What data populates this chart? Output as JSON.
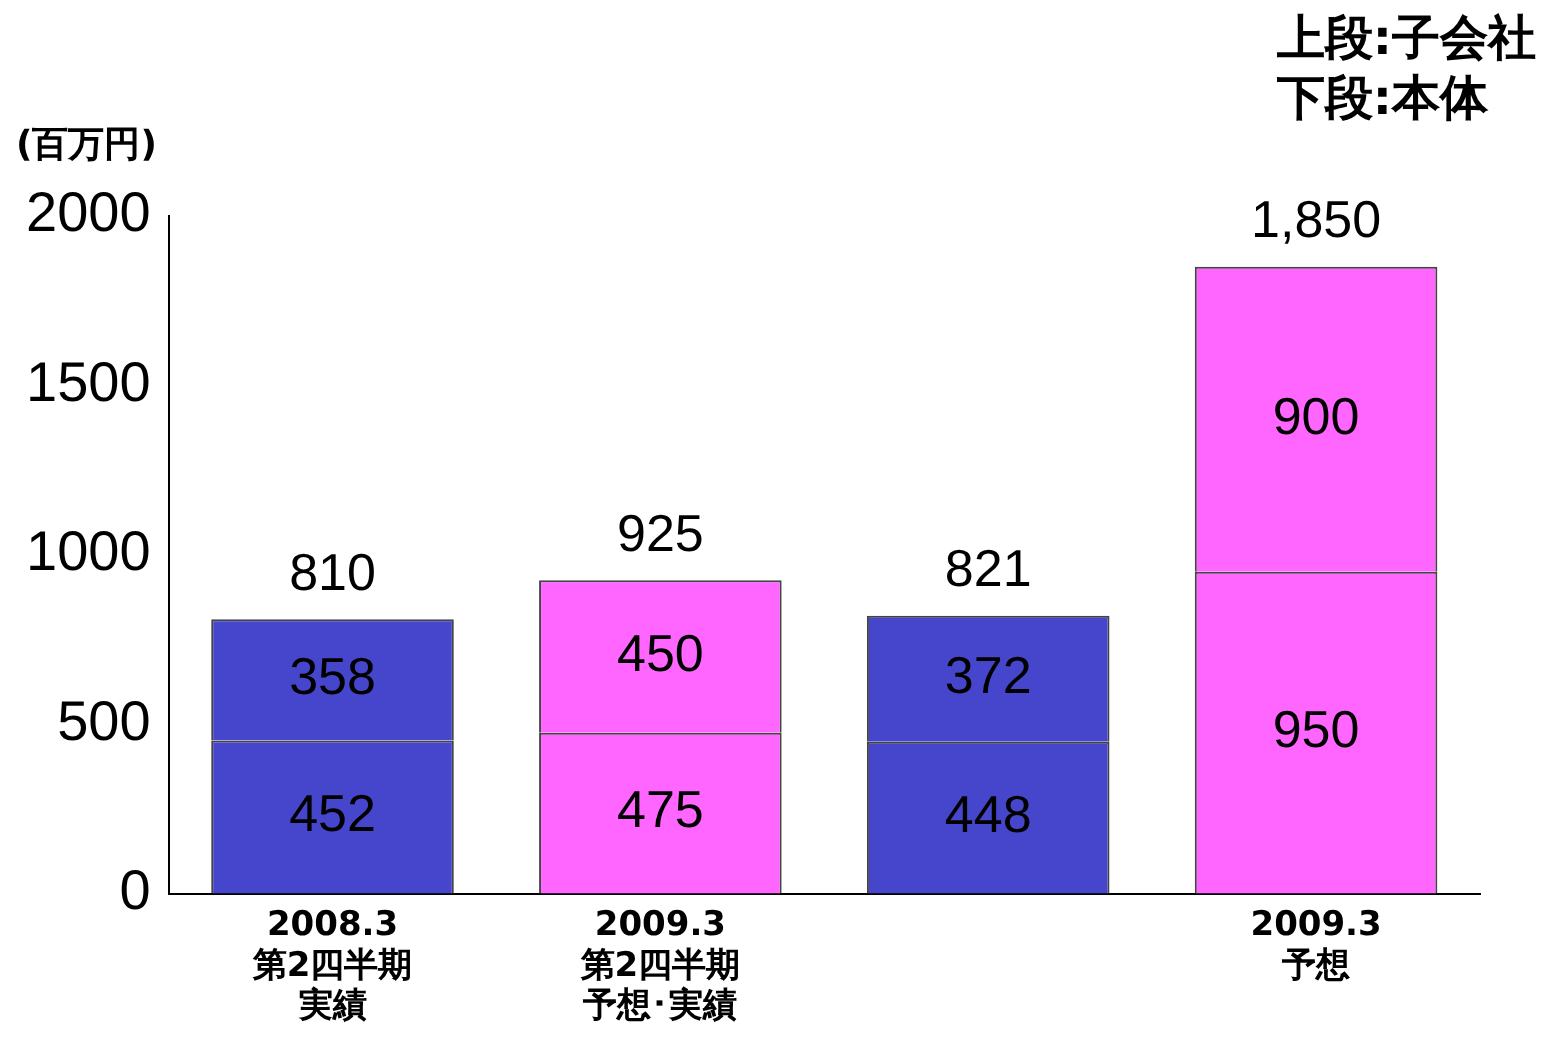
{
  "chart_data": {
    "type": "bar",
    "stacked": true,
    "ylabel": "(百万円)",
    "categories": [
      "2008.3\n第2四半期実績",
      "2009.3\n第2四半期予想･実績",
      null,
      "2009.3\n予想"
    ],
    "series": [
      {
        "colors": [
          "#4646cc",
          "#ff66ff",
          "#4646cc",
          "#ff66ff"
        ],
        "values": [
          452,
          475,
          448,
          950
        ]
      },
      {
        "colors": [
          "#4646cc",
          "#ff66ff",
          "#4646cc",
          "#ff66ff"
        ],
        "values": [
          358,
          450,
          372,
          900
        ]
      }
    ],
    "ylim": [
      0,
      2000
    ],
    "yticks": [
      0,
      500,
      1000,
      1500,
      2000
    ],
    "grid": false,
    "legend": false,
    "data_labels": true,
    "totals": [
      "810",
      "925",
      "821",
      "1,850"
    ],
    "annotations": [
      "上段:子会社",
      "下段:本体"
    ]
  }
}
